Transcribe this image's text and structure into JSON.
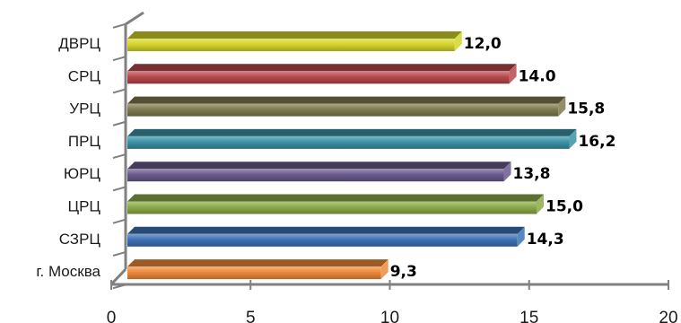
{
  "chart_data": {
    "type": "bar",
    "orientation": "horizontal",
    "style": "3d",
    "categories": [
      "ДВРЦ",
      "СРЦ",
      "УРЦ",
      "ПРЦ",
      "ЮРЦ",
      "ЦРЦ",
      "СЗРЦ",
      "г. Москва"
    ],
    "values": [
      12.0,
      14.0,
      15.8,
      16.2,
      13.8,
      15.0,
      14.3,
      9.3
    ],
    "value_labels": [
      "12,0",
      "14.0",
      "15,8",
      "16,2",
      "13,8",
      "15,0",
      "14,3",
      "9,3"
    ],
    "colors": [
      "#d6d62a",
      "#b8484c",
      "#7f7a4d",
      "#3a93a6",
      "#6a5a8e",
      "#8cab4a",
      "#3d72b5",
      "#ee8a3a"
    ],
    "xlim": [
      0,
      20
    ],
    "xticks": [
      0,
      5,
      10,
      15,
      20
    ],
    "title": "",
    "xlabel": "",
    "ylabel": "",
    "legend": "none"
  }
}
